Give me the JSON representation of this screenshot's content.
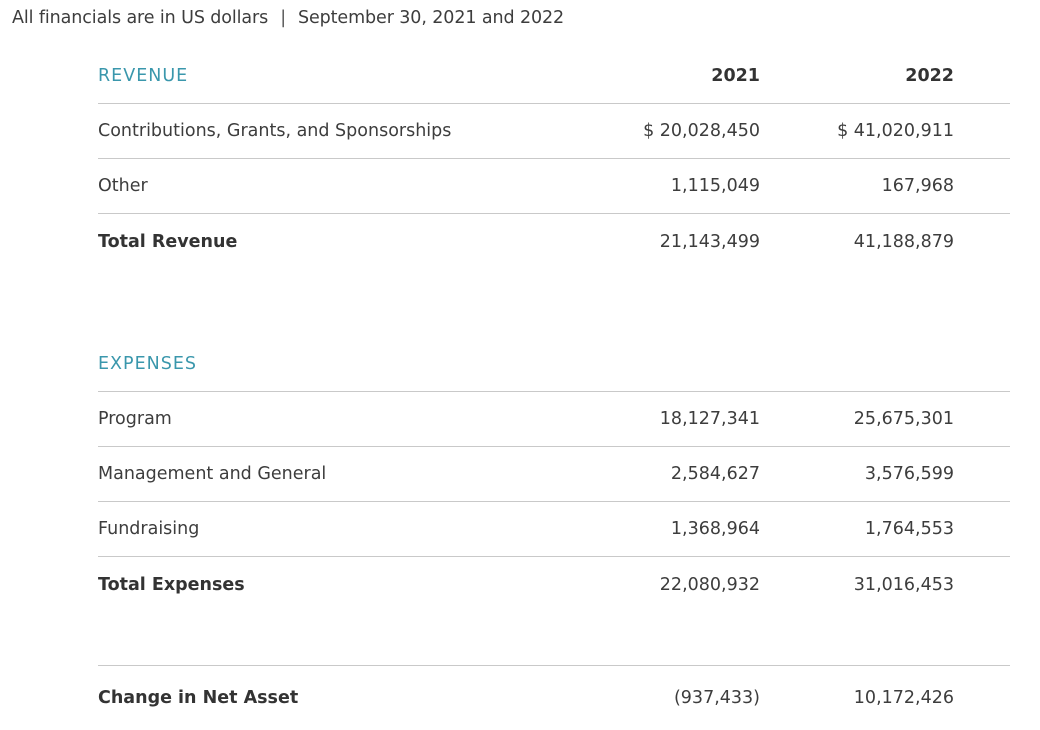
{
  "caption": {
    "left": "All financials are in US dollars",
    "separator": "|",
    "right": "September 30, 2021 and 2022"
  },
  "columns": [
    "2021",
    "2022"
  ],
  "revenue": {
    "title": "REVENUE",
    "rows": [
      {
        "label": "Contributions, Grants, and Sponsorships",
        "v2021": "$ 20,028,450",
        "v2022": "$ 41,020,911"
      },
      {
        "label": "Other",
        "v2021": "1,115,049",
        "v2022": "167,968"
      }
    ],
    "total": {
      "label": "Total Revenue",
      "v2021": "21,143,499",
      "v2022": "41,188,879"
    }
  },
  "expenses": {
    "title": "EXPENSES",
    "rows": [
      {
        "label": "Program",
        "v2021": "18,127,341",
        "v2022": "25,675,301"
      },
      {
        "label": "Management and General",
        "v2021": "2,584,627",
        "v2022": "3,576,599"
      },
      {
        "label": "Fundraising",
        "v2021": "1,368,964",
        "v2022": "1,764,553"
      }
    ],
    "total": {
      "label": "Total Expenses",
      "v2021": "22,080,932",
      "v2022": "31,016,453"
    }
  },
  "net": {
    "label": "Change in Net Asset",
    "v2021": "(937,433)",
    "v2022": "10,172,426"
  },
  "colors": {
    "accent": "#3a97ac",
    "text": "#3d3d3d",
    "rule": "#c9c9c9"
  }
}
